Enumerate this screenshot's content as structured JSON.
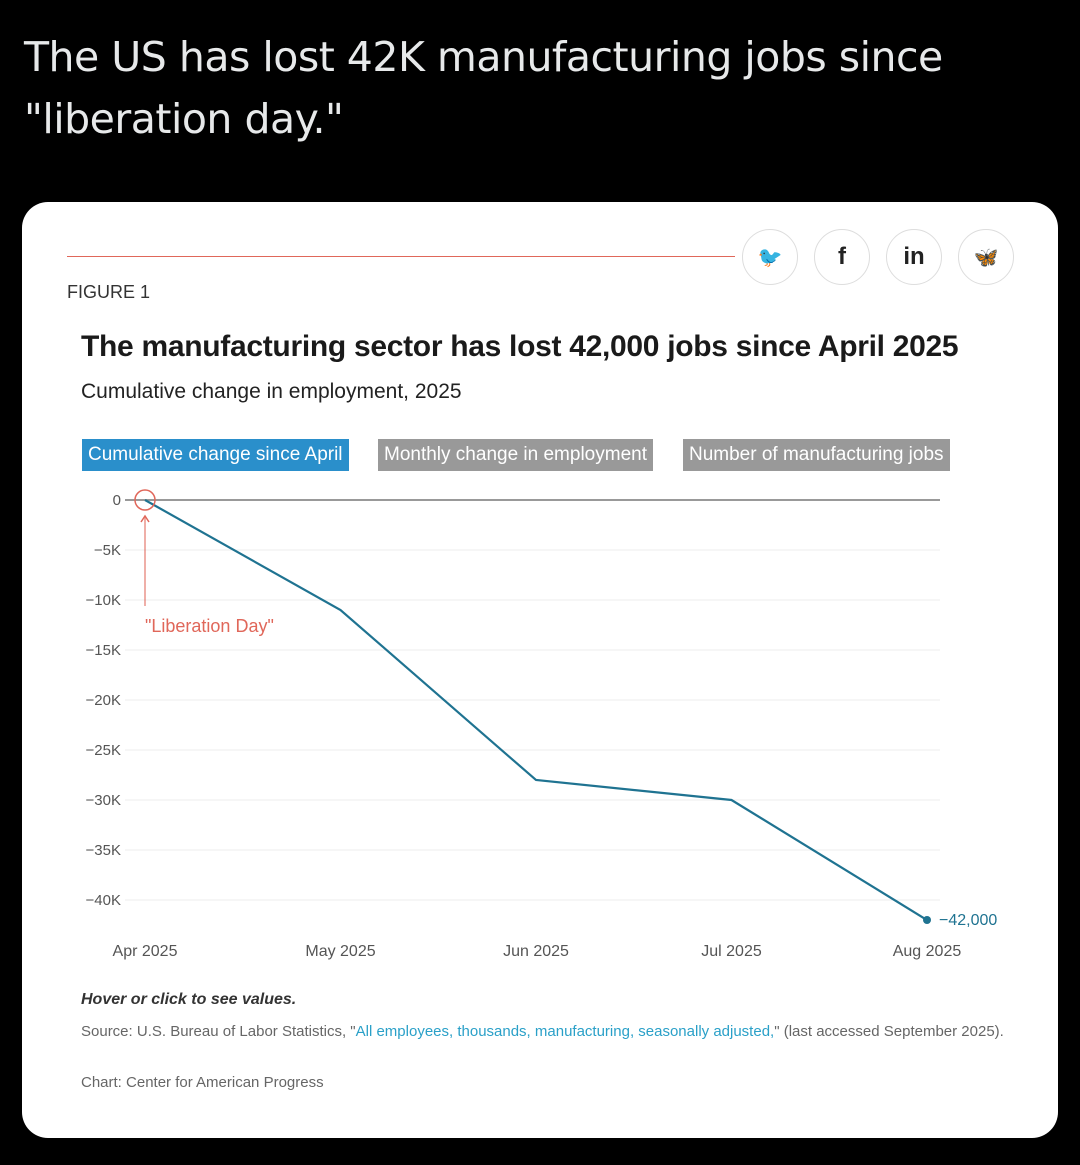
{
  "tweet_text": "The US has lost 42K manufacturing jobs since \"liberation day.\"",
  "share_buttons": [
    {
      "icon": "twitter-icon",
      "glyph": "🐦"
    },
    {
      "icon": "facebook-icon",
      "glyph": "f"
    },
    {
      "icon": "linkedin-icon",
      "glyph": "in"
    },
    {
      "icon": "bluesky-icon",
      "glyph": "🦋"
    }
  ],
  "figure_label": "FIGURE 1",
  "tabs": [
    {
      "label": "Cumulative change since April",
      "active": true
    },
    {
      "label": "Monthly change in employment",
      "active": false
    },
    {
      "label": "Number of manufacturing jobs",
      "active": false
    }
  ],
  "chart_data": {
    "type": "line",
    "title": "The manufacturing sector has lost 42,000 jobs since April 2025",
    "subtitle": "Cumulative change in employment, 2025",
    "categories": [
      "Apr 2025",
      "May 2025",
      "Jun 2025",
      "Jul 2025",
      "Aug 2025"
    ],
    "values": [
      0,
      -11000,
      -28000,
      -30000,
      -42000
    ],
    "ylim": [
      -42000,
      0
    ],
    "yticks": [
      0,
      -5000,
      -10000,
      -15000,
      -20000,
      -25000,
      -30000,
      -35000,
      -40000
    ],
    "ytick_labels": [
      "0",
      "−5K",
      "−10K",
      "−15K",
      "−20K",
      "−25K",
      "−30K",
      "−35K",
      "−40K"
    ],
    "end_label": "−42,000",
    "annotation": "\"Liberation Day\"",
    "grid": true,
    "line_color": "#1f7391",
    "annotation_color": "#e0675a"
  },
  "hover_note": "Hover or click to see values.",
  "source": {
    "prefix": "Source: U.S. Bureau of Labor Statistics, \"",
    "link": "All employees, thousands, manufacturing, seasonally adjusted,",
    "suffix": "\" (last accessed September 2025)."
  },
  "credit": "Chart: Center for American Progress"
}
